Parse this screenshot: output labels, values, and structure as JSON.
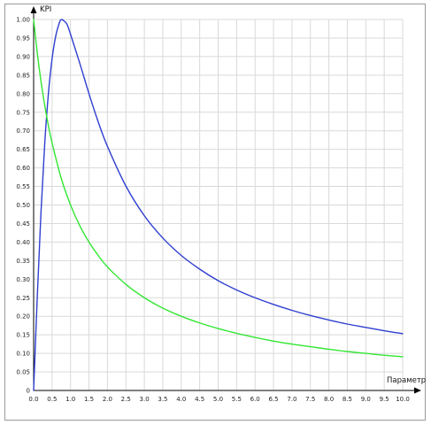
{
  "chart_data": {
    "type": "line",
    "title": "",
    "xlabel": "Параметр",
    "ylabel": "KPI",
    "xlim": [
      0,
      10
    ],
    "ylim": [
      0,
      1
    ],
    "grid": true,
    "x_ticks": [
      "0.0",
      "0.5",
      "1.0",
      "1.5",
      "2.0",
      "2.5",
      "3.0",
      "3.5",
      "4.0",
      "4.5",
      "5.0",
      "5.5",
      "6.0",
      "6.5",
      "7.0",
      "7.5",
      "8.0",
      "8.5",
      "9.0",
      "9.5",
      "10.0"
    ],
    "y_ticks": [
      "0",
      "0.05",
      "0.10",
      "0.15",
      "0.20",
      "0.25",
      "0.30",
      "0.35",
      "0.40",
      "0.45",
      "0.50",
      "0.55",
      "0.60",
      "0.65",
      "0.70",
      "0.75",
      "0.80",
      "0.85",
      "0.90",
      "0.95",
      "1.00"
    ],
    "series": [
      {
        "color": "#2f3fd0",
        "x": [
          0,
          0.1,
          0.2,
          0.3,
          0.4,
          0.5,
          0.6,
          0.7,
          0.75,
          0.8,
          0.9,
          1.0,
          1.25,
          1.5,
          1.75,
          2.0,
          2.5,
          3.0,
          3.5,
          4.0,
          4.5,
          5.0,
          5.5,
          6.0,
          6.5,
          7.0,
          7.5,
          8.0,
          8.5,
          9.0,
          9.5,
          10.0
        ],
        "values": [
          0.0,
          0.255,
          0.482,
          0.664,
          0.8,
          0.894,
          0.956,
          0.992,
          1.0,
          0.998,
          0.988,
          0.96,
          0.882,
          0.8,
          0.724,
          0.658,
          0.551,
          0.471,
          0.411,
          0.364,
          0.327,
          0.296,
          0.271,
          0.25,
          0.232,
          0.216,
          0.202,
          0.19,
          0.179,
          0.17,
          0.161,
          0.153
        ]
      },
      {
        "color": "#33e633",
        "x": [
          0,
          0.1,
          0.2,
          0.3,
          0.4,
          0.5,
          0.75,
          1.0,
          1.25,
          1.5,
          1.75,
          2.0,
          2.5,
          3.0,
          3.5,
          4.0,
          4.5,
          5.0,
          5.5,
          6.0,
          6.5,
          7.0,
          7.5,
          8.0,
          8.5,
          9.0,
          9.5,
          10.0
        ],
        "values": [
          1.0,
          0.909,
          0.833,
          0.769,
          0.714,
          0.667,
          0.571,
          0.5,
          0.444,
          0.4,
          0.364,
          0.333,
          0.286,
          0.25,
          0.222,
          0.2,
          0.182,
          0.167,
          0.154,
          0.143,
          0.133,
          0.125,
          0.118,
          0.111,
          0.105,
          0.1,
          0.095,
          0.091
        ]
      }
    ]
  }
}
